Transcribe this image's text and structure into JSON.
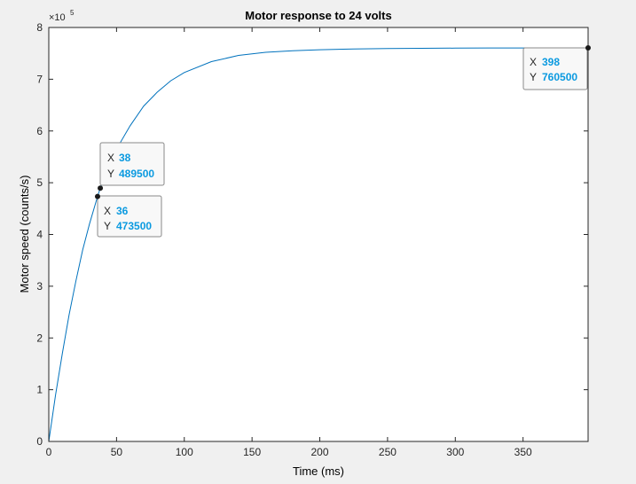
{
  "colors": {
    "figure_bg": "#f0f0f0",
    "axes_bg": "#ffffff",
    "line": "#0072bd",
    "datatip_value": "#0b9ae0",
    "datatip_border": "#8a8a8a",
    "marker": "#1a1a1a"
  },
  "chart_data": {
    "type": "line",
    "title": "Motor response to 24 volts",
    "xlabel": "Time (ms)",
    "ylabel": "Motor speed (counts/s)",
    "xlim": [
      0,
      398
    ],
    "ylim": [
      0,
      800000
    ],
    "x_ticks": [
      0,
      50,
      100,
      150,
      200,
      250,
      300,
      350
    ],
    "x_tick_labels": [
      "0",
      "50",
      "100",
      "150",
      "200",
      "250",
      "300",
      "350"
    ],
    "y_ticks": [
      0,
      100000,
      200000,
      300000,
      400000,
      500000,
      600000,
      700000,
      800000
    ],
    "y_tick_labels": [
      "0",
      "1",
      "2",
      "3",
      "4",
      "5",
      "6",
      "7",
      "8"
    ],
    "y_exponent": {
      "base": "×10",
      "power": "5"
    },
    "grid": false,
    "series": [
      {
        "x": [
          0,
          5,
          10,
          15,
          20,
          25,
          30,
          36,
          38,
          45,
          50,
          60,
          70,
          80,
          90,
          100,
          120,
          140,
          160,
          180,
          200,
          225,
          250,
          275,
          300,
          325,
          350,
          375,
          398
        ],
        "y": [
          0,
          90000,
          170000,
          245000,
          310000,
          370000,
          420000,
          473500,
          489500,
          535000,
          565000,
          610000,
          648000,
          675000,
          697000,
          713000,
          734000,
          746000,
          752000,
          755000,
          757000,
          758500,
          759300,
          759800,
          760100,
          760300,
          760400,
          760500,
          760500
        ]
      }
    ],
    "datatips": [
      {
        "x_label": "X",
        "x": "38",
        "y_label": "Y",
        "y": "489500"
      },
      {
        "x_label": "X",
        "x": "36",
        "y_label": "Y",
        "y": "473500"
      },
      {
        "x_label": "X",
        "x": "398",
        "y_label": "Y",
        "y": "760500"
      }
    ]
  }
}
